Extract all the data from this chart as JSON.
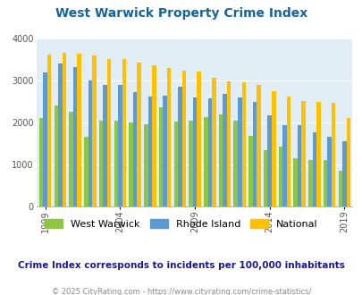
{
  "title": "West Warwick Property Crime Index",
  "subtitle": "Crime Index corresponds to incidents per 100,000 inhabitants",
  "footer": "© 2025 CityRating.com - https://www.cityrating.com/crime-statistics/",
  "years": [
    1999,
    2000,
    2001,
    2002,
    2003,
    2004,
    2005,
    2006,
    2007,
    2008,
    2009,
    2010,
    2011,
    2012,
    2013,
    2014,
    2015,
    2016,
    2017,
    2018,
    2019
  ],
  "west_warwick": [
    2100,
    2400,
    2250,
    1650,
    2050,
    2050,
    2000,
    1950,
    2350,
    2030,
    2050,
    2120,
    2200,
    2050,
    1680,
    1350,
    1430,
    1150,
    1100,
    1100,
    850
  ],
  "rhode_island": [
    3200,
    3400,
    3320,
    3000,
    2900,
    2900,
    2730,
    2620,
    2630,
    2850,
    2600,
    2580,
    2680,
    2600,
    2480,
    2160,
    1940,
    1930,
    1770,
    1660,
    1560
  ],
  "national": [
    3620,
    3660,
    3640,
    3600,
    3510,
    3500,
    3420,
    3360,
    3290,
    3230,
    3210,
    3060,
    2970,
    2950,
    2900,
    2750,
    2620,
    2510,
    2490,
    2460,
    2110
  ],
  "color_ww": "#8dc63f",
  "color_ri": "#5b9bd5",
  "color_nat": "#ffc000",
  "bg_color": "#e0edf5",
  "title_color": "#1464a0",
  "subtitle_color": "#1a1a8c",
  "footer_color": "#888888",
  "ylim": [
    0,
    4000
  ],
  "yticks": [
    0,
    1000,
    2000,
    3000,
    4000
  ],
  "xtick_years": [
    1999,
    2004,
    2009,
    2014,
    2019
  ]
}
